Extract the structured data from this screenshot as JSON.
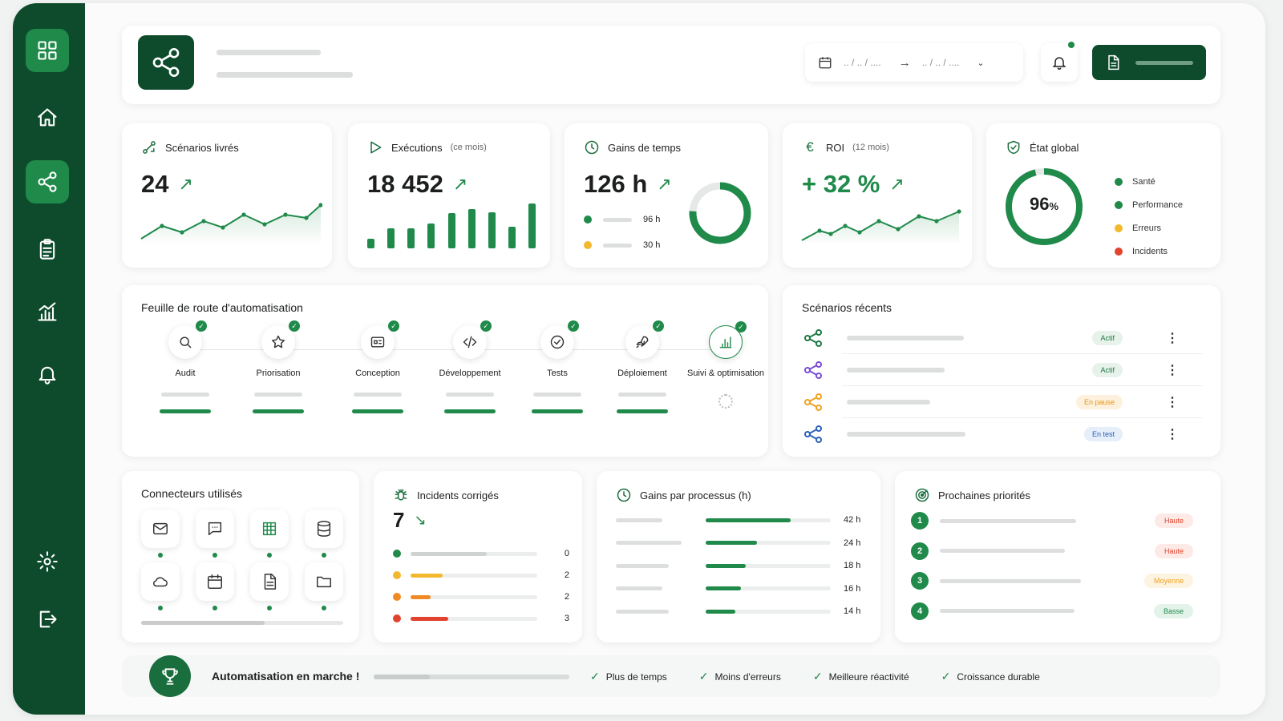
{
  "header": {
    "date_start": ".. / .. / ....",
    "date_end": ".. / .. / ...."
  },
  "kpis": [
    {
      "title": "Scénarios livrés",
      "subtitle": "",
      "value": "24"
    },
    {
      "title": "Exécutions",
      "subtitle": "(ce mois)",
      "value": "18 452"
    },
    {
      "title": "Gains de temps",
      "subtitle": "",
      "value": "126 h",
      "legend": [
        {
          "value": "96 h",
          "color": "#1f8a4a"
        },
        {
          "value": "30 h",
          "color": "#f2b82e"
        }
      ],
      "donut_fraction": 0.76
    },
    {
      "title": "ROI",
      "subtitle": "(12 mois)",
      "value": "+ 32 %"
    },
    {
      "title": "État global",
      "subtitle": "",
      "value": "96",
      "unit": "%",
      "gauge_fraction": 0.96,
      "legend": [
        {
          "label": "Santé",
          "color": "#1f8a4a"
        },
        {
          "label": "Performance",
          "color": "#1f8a4a"
        },
        {
          "label": "Erreurs",
          "color": "#f2b82e"
        },
        {
          "label": "Incidents",
          "color": "#e0442f"
        }
      ]
    }
  ],
  "exec_bars": [
    0.22,
    0.45,
    0.45,
    0.55,
    0.78,
    0.88,
    0.8,
    0.48,
    1.0
  ],
  "roadmap": {
    "title": "Feuille de route d'automatisation",
    "steps": [
      {
        "label": "Audit",
        "icon": "search-icon"
      },
      {
        "label": "Priorisation",
        "icon": "star-icon"
      },
      {
        "label": "Conception",
        "icon": "design-icon"
      },
      {
        "label": "Développement",
        "icon": "code-icon"
      },
      {
        "label": "Tests",
        "icon": "check-circle-icon"
      },
      {
        "label": "Déploiement",
        "icon": "rocket-icon"
      },
      {
        "label": "Suivi & optimisation",
        "icon": "bar-chart-icon"
      }
    ]
  },
  "recent": {
    "title": "Scénarios récents",
    "items": [
      {
        "status": "Actif",
        "color": "#1f7a45"
      },
      {
        "status": "Actif",
        "color": "#7b4cd6"
      },
      {
        "status": "En pause",
        "color": "#f2a21e"
      },
      {
        "status": "En test",
        "color": "#2b62b8"
      }
    ]
  },
  "connectors": {
    "title": "Connecteurs utilisés"
  },
  "incidents": {
    "title": "Incidents corrigés",
    "value": "7",
    "rows": [
      {
        "value": "0",
        "color": "#1f8a4a",
        "fill": 0.6
      },
      {
        "value": "2",
        "color": "#f2b82e",
        "fill": 0.25
      },
      {
        "value": "2",
        "color": "#f08a24",
        "fill": 0.16
      },
      {
        "value": "3",
        "color": "#e0442f",
        "fill": 0.3
      }
    ]
  },
  "gains": {
    "title": "Gains par processus (h)",
    "rows": [
      {
        "value": "42 h",
        "fill": 0.68
      },
      {
        "value": "24 h",
        "fill": 0.41
      },
      {
        "value": "18 h",
        "fill": 0.32
      },
      {
        "value": "16 h",
        "fill": 0.28
      },
      {
        "value": "14 h",
        "fill": 0.24
      }
    ]
  },
  "priorities": {
    "title": "Prochaines priorités",
    "items": [
      {
        "num": "1",
        "level": "Haute",
        "color": "#e0442f",
        "bg": "#fde9e6"
      },
      {
        "num": "2",
        "level": "Haute",
        "color": "#e0442f",
        "bg": "#fde9e6"
      },
      {
        "num": "3",
        "level": "Moyenne",
        "color": "#f2a21e",
        "bg": "#fdf3e1"
      },
      {
        "num": "4",
        "level": "Basse",
        "color": "#1f8a4a",
        "bg": "#e4f3ea"
      }
    ]
  },
  "footer": {
    "title": "Automatisation en marche !",
    "benefits": [
      "Plus de temps",
      "Moins d'erreurs",
      "Meilleure réactivité",
      "Croissance durable"
    ]
  }
}
